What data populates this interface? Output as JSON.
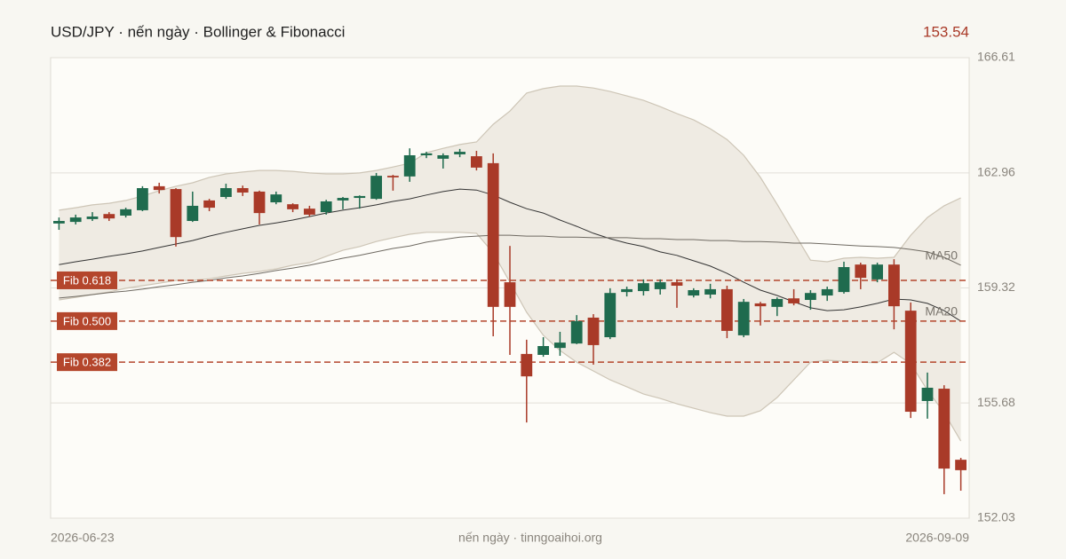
{
  "chart_data": {
    "type": "candlestick",
    "title": "USD/JPY · nến ngày · Bollinger & Fibonacci",
    "last_price": 153.54,
    "source": "nến ngày · tinngoaihoi.org",
    "categories": [
      "2026-06-23",
      null,
      null,
      null,
      null,
      null,
      null,
      null,
      null,
      null,
      null,
      null,
      null,
      null,
      null,
      null,
      null,
      null,
      null,
      null,
      null,
      null,
      null,
      null,
      null,
      null,
      null,
      null,
      null,
      null,
      null,
      null,
      null,
      null,
      null,
      null,
      null,
      null,
      null,
      null,
      null,
      null,
      null,
      null,
      null,
      null,
      null,
      null,
      null,
      null,
      null,
      null,
      null,
      null,
      "2026-09-09"
    ],
    "open": [
      161.36,
      161.41,
      161.5,
      161.66,
      161.61,
      161.78,
      162.54,
      162.45,
      161.44,
      162.09,
      162.2,
      162.48,
      162.37,
      162.03,
      161.97,
      161.83,
      161.72,
      162.09,
      162.17,
      162.14,
      162.87,
      162.85,
      163.52,
      163.41,
      163.55,
      163.49,
      163.27,
      159.5,
      157.23,
      157.2,
      157.42,
      157.56,
      158.38,
      157.76,
      159.19,
      159.22,
      159.28,
      159.5,
      159.08,
      159.11,
      159.28,
      157.82,
      158.83,
      158.72,
      158.99,
      158.94,
      159.08,
      159.19,
      160.06,
      159.59,
      160.06,
      158.6,
      155.74,
      156.13,
      153.88
    ],
    "high": [
      161.55,
      161.64,
      161.72,
      161.72,
      161.86,
      162.54,
      162.65,
      162.48,
      162.37,
      162.14,
      162.62,
      162.56,
      162.4,
      162.37,
      162.0,
      161.92,
      162.11,
      162.2,
      162.25,
      162.96,
      162.9,
      163.74,
      163.63,
      163.58,
      163.72,
      163.66,
      163.58,
      160.65,
      157.68,
      157.76,
      157.93,
      158.46,
      158.49,
      159.31,
      159.36,
      159.59,
      159.59,
      159.59,
      159.31,
      159.45,
      159.39,
      158.97,
      158.88,
      159.02,
      159.28,
      159.25,
      159.36,
      160.15,
      160.12,
      160.12,
      160.23,
      158.86,
      156.64,
      156.24,
      153.94
    ],
    "low": [
      161.16,
      161.33,
      161.44,
      161.44,
      161.55,
      161.75,
      162.31,
      160.63,
      161.41,
      161.75,
      162.14,
      162.23,
      161.33,
      161.97,
      161.72,
      161.58,
      161.64,
      161.81,
      161.83,
      162.11,
      162.4,
      162.68,
      163.43,
      163.1,
      163.46,
      163.04,
      157.79,
      157.2,
      155.06,
      157.14,
      157.17,
      157.54,
      156.89,
      157.7,
      159.05,
      159.08,
      159.11,
      158.69,
      159.02,
      158.99,
      157.73,
      157.76,
      158.13,
      158.43,
      158.77,
      158.63,
      158.91,
      159.14,
      159.28,
      159.5,
      158.01,
      155.2,
      155.18,
      152.79,
      152.9
    ],
    "close": [
      161.44,
      161.55,
      161.58,
      161.52,
      161.81,
      162.48,
      162.42,
      160.93,
      161.92,
      161.86,
      162.48,
      162.34,
      161.69,
      162.28,
      161.81,
      161.64,
      162.06,
      162.17,
      162.23,
      162.87,
      162.82,
      163.52,
      163.58,
      163.52,
      163.63,
      163.13,
      158.72,
      158.72,
      156.52,
      157.48,
      157.59,
      158.27,
      157.51,
      159.16,
      159.28,
      159.47,
      159.5,
      159.39,
      159.25,
      159.28,
      157.96,
      158.88,
      158.74,
      158.97,
      158.83,
      159.16,
      159.28,
      159.98,
      159.64,
      160.06,
      158.74,
      155.4,
      156.16,
      153.6,
      153.55
    ],
    "up_color": "#1f6b4e",
    "down_color": "#a93a28",
    "bands": {
      "color": "#efebe3",
      "upper": [
        161.78,
        161.86,
        161.95,
        162.0,
        162.09,
        162.23,
        162.4,
        162.54,
        162.65,
        162.82,
        162.93,
        162.99,
        163.04,
        163.04,
        163.01,
        162.96,
        162.93,
        162.93,
        162.96,
        163.04,
        163.15,
        163.27,
        163.6,
        163.74,
        163.86,
        163.94,
        164.5,
        164.92,
        165.49,
        165.63,
        165.71,
        165.71,
        165.65,
        165.54,
        165.4,
        165.26,
        165.06,
        164.84,
        164.64,
        164.36,
        164.02,
        163.52,
        162.82,
        161.97,
        161.08,
        160.2,
        160.15,
        160.26,
        160.29,
        160.26,
        160.29,
        160.99,
        161.55,
        161.92,
        162.17
      ],
      "lower": [
        158.94,
        159.02,
        159.11,
        159.19,
        159.31,
        159.39,
        159.47,
        159.56,
        159.56,
        159.61,
        159.7,
        159.78,
        159.84,
        159.92,
        160.04,
        160.12,
        160.32,
        160.51,
        160.63,
        160.79,
        160.91,
        161.02,
        161.08,
        161.08,
        161.08,
        161.05,
        160.43,
        159.5,
        158.55,
        157.82,
        157.34,
        156.97,
        156.69,
        156.41,
        156.19,
        155.96,
        155.82,
        155.65,
        155.51,
        155.37,
        155.26,
        155.26,
        155.43,
        155.85,
        156.41,
        156.97,
        157.03,
        157.0,
        156.97,
        156.95,
        157.28,
        156.92,
        156.08,
        155.37,
        154.47
      ]
    },
    "series": [
      {
        "name": "MA20",
        "color": "#333333",
        "values": [
          160.06,
          160.15,
          160.23,
          160.32,
          160.4,
          160.49,
          160.6,
          160.71,
          160.82,
          160.96,
          161.08,
          161.19,
          161.3,
          161.38,
          161.47,
          161.58,
          161.69,
          161.78,
          161.86,
          161.95,
          162.06,
          162.14,
          162.26,
          162.37,
          162.45,
          162.42,
          162.26,
          162.03,
          161.83,
          161.69,
          161.47,
          161.27,
          161.05,
          160.88,
          160.74,
          160.63,
          160.46,
          160.35,
          160.18,
          160.01,
          159.78,
          159.5,
          159.25,
          159.08,
          158.88,
          158.69,
          158.6,
          158.63,
          158.72,
          158.83,
          158.97,
          158.94,
          158.83,
          158.6,
          158.27
        ]
      },
      {
        "name": "MA50",
        "color": "#6f6a62",
        "values": [
          159.0,
          159.05,
          159.11,
          159.17,
          159.22,
          159.28,
          159.36,
          159.42,
          159.5,
          159.56,
          159.64,
          159.7,
          159.78,
          159.87,
          159.95,
          160.04,
          160.15,
          160.26,
          160.35,
          160.46,
          160.57,
          160.65,
          160.77,
          160.85,
          160.93,
          160.96,
          160.99,
          160.99,
          160.96,
          160.96,
          160.93,
          160.93,
          160.91,
          160.91,
          160.91,
          160.88,
          160.88,
          160.85,
          160.85,
          160.82,
          160.82,
          160.79,
          160.79,
          160.77,
          160.74,
          160.74,
          160.71,
          160.68,
          160.65,
          160.63,
          160.6,
          160.54,
          160.46,
          160.29,
          160.04
        ]
      }
    ],
    "fib": [
      {
        "label": "Fib 0.618",
        "value": 159.56
      },
      {
        "label": "Fib 0.500",
        "value": 158.27
      },
      {
        "label": "Fib 0.382",
        "value": 156.97
      }
    ],
    "fib_color": "#b4462c",
    "ylim": [
      152.03,
      166.61
    ],
    "yticks": [
      152.03,
      155.68,
      159.32,
      162.96,
      166.61
    ],
    "grid": true
  }
}
